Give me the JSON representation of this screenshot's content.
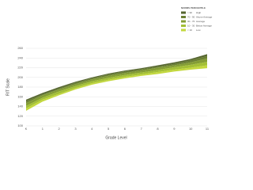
{
  "chart_data": {
    "type": "area",
    "x_label": "Grade Level",
    "y_label": "RIT Scale",
    "legend_title": "NORMS PERCENTILE",
    "categories": [
      "K",
      "1",
      "2",
      "3",
      "4",
      "5",
      "6",
      "7",
      "8",
      "9",
      "10",
      "11"
    ],
    "baseline": [
      131,
      150,
      163,
      175,
      185,
      192,
      198,
      203,
      207,
      212,
      216,
      219
    ],
    "series": [
      {
        "name": "> 90",
        "label": "High",
        "color": "#55652f",
        "values": [
          154,
          168,
          180,
          191,
          200,
          208,
          214,
          219,
          225,
          231,
          238,
          248
        ]
      },
      {
        "name": "70 - 90",
        "label": "Above Average",
        "color": "#6a7f33",
        "values": [
          151,
          165,
          177,
          189,
          198,
          206,
          212,
          217,
          222,
          228,
          235,
          244
        ]
      },
      {
        "name": "30 - 70",
        "label": "Average",
        "color": "#849d35",
        "values": [
          147,
          163,
          175,
          186,
          196,
          203,
          209,
          214,
          220,
          225,
          231,
          239
        ]
      },
      {
        "name": "10 - 30",
        "label": "Below Average",
        "color": "#a3bf36",
        "values": [
          141,
          158,
          171,
          182,
          192,
          199,
          205,
          210,
          215,
          221,
          226,
          232
        ]
      },
      {
        "name": "< 10",
        "label": "Low",
        "color": "#c3d83e",
        "values": [
          136,
          154,
          166,
          178,
          188,
          195,
          201,
          206,
          211,
          216,
          220,
          225
        ]
      }
    ],
    "ylim": [
      100,
      260
    ],
    "yticks": [
      100,
      120,
      140,
      160,
      180,
      200,
      220,
      240,
      260
    ],
    "grid": true
  }
}
